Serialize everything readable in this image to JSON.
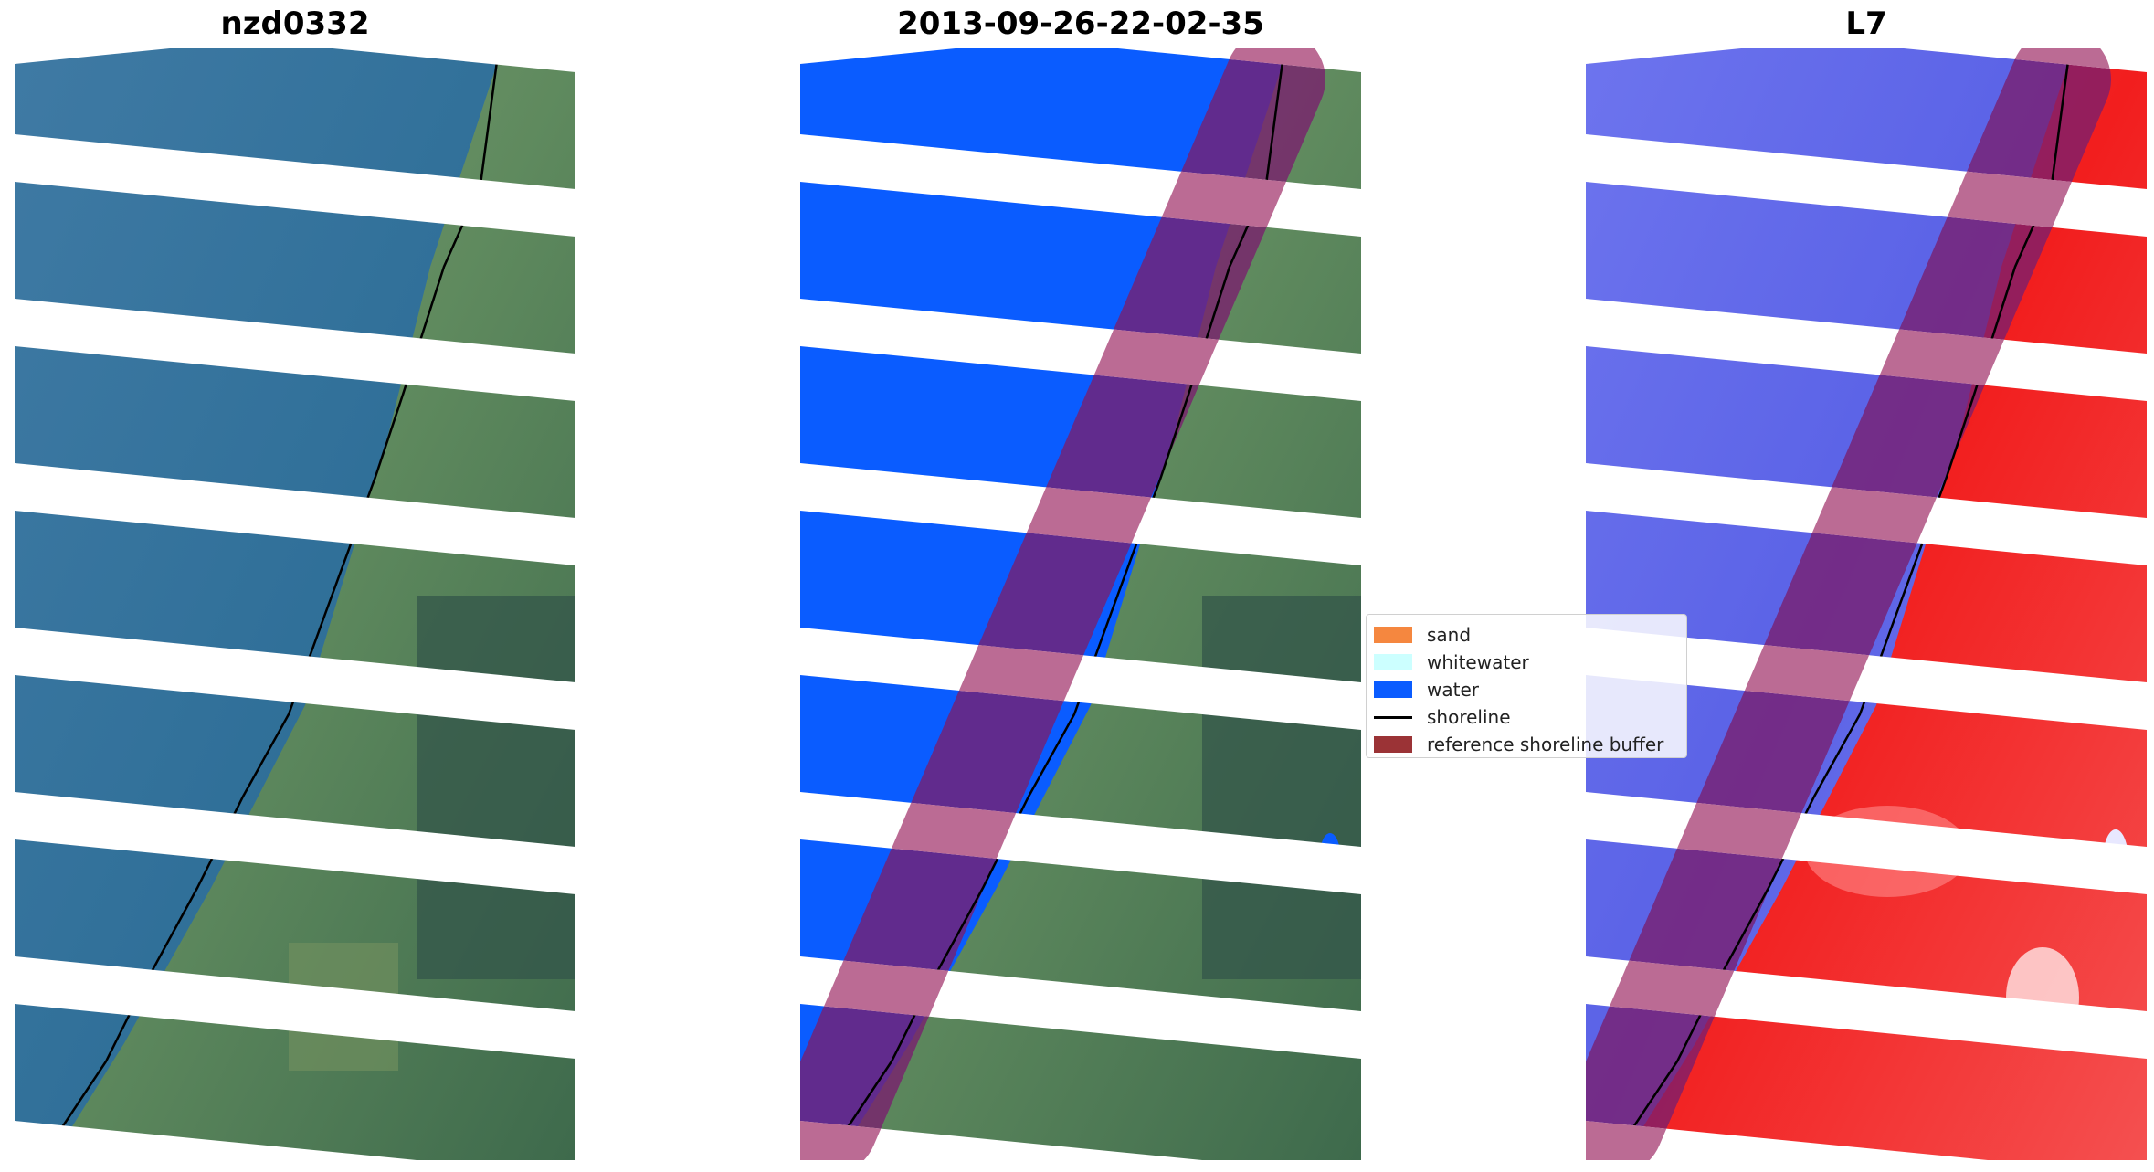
{
  "panels": [
    {
      "title": "nzd0332",
      "kind": "rgb"
    },
    {
      "title": "2013-09-26-22-02-35",
      "kind": "classified"
    },
    {
      "title": "L7",
      "kind": "index"
    }
  ],
  "legend": {
    "items": [
      {
        "label": "sand",
        "color": "#f5873f"
      },
      {
        "label": "whitewater",
        "color": "#ccffff"
      },
      {
        "label": "water",
        "color": "#0a5cff"
      },
      {
        "label": "shoreline",
        "color": "#000000"
      },
      {
        "label": "reference shoreline buffer",
        "color": "#9b3336"
      }
    ]
  },
  "colors": {
    "ocean": "#3f7a9c",
    "land": "#5a8a60",
    "water_class": "#0a5cff",
    "index_water": "#5c66e8",
    "index_land": "#f22a2a",
    "buffer": "#7a1e6e",
    "shoreline": "#000000"
  }
}
